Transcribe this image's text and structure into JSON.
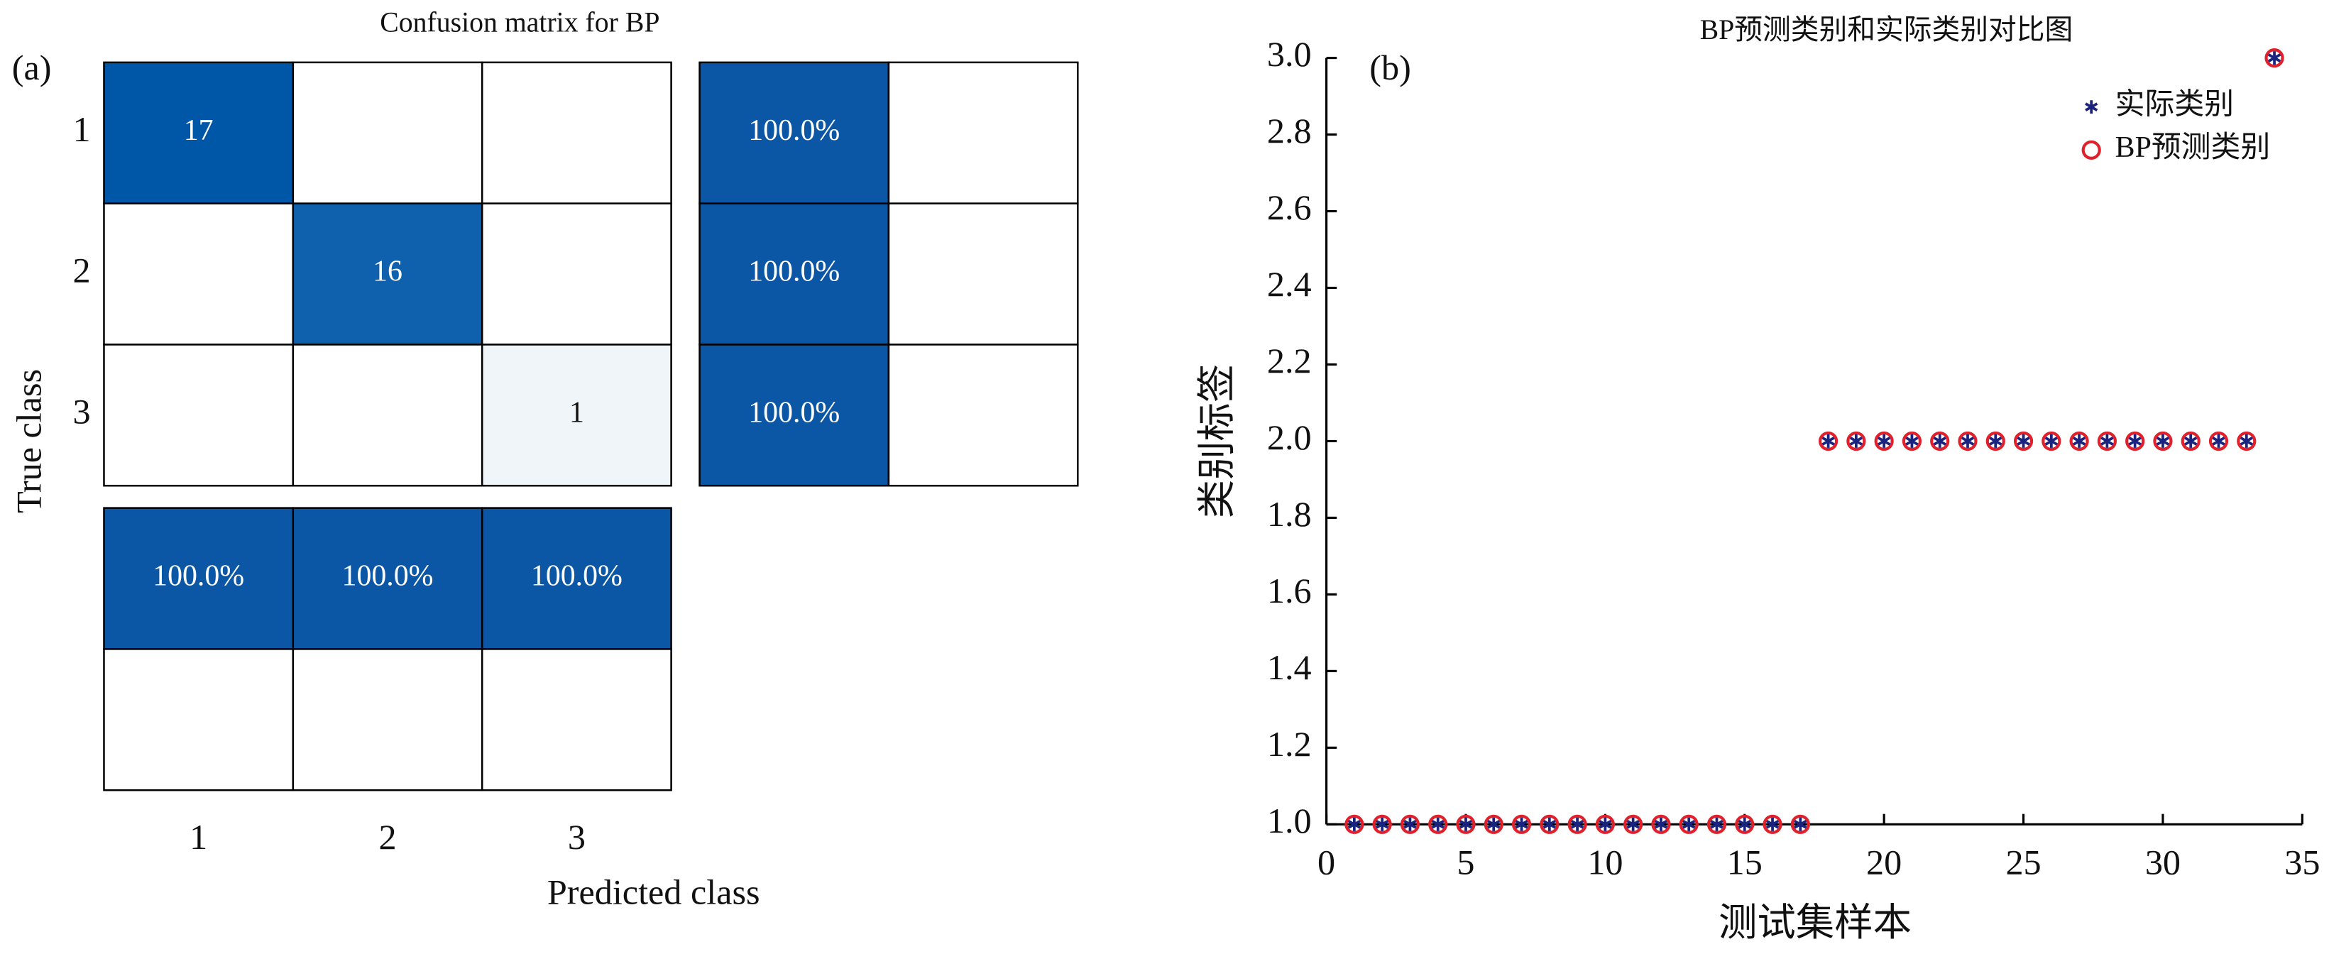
{
  "chart_data": [
    {
      "type": "confusion",
      "panel": "(a)",
      "title": "Confusion matrix for BP",
      "xlabel": "Predicted class",
      "ylabel": "True class",
      "classes": [
        "1",
        "2",
        "3"
      ],
      "matrix": [
        [
          17,
          null,
          null
        ],
        [
          null,
          16,
          null
        ],
        [
          null,
          null,
          1
        ]
      ],
      "row_summary": {
        "values": [
          100,
          100,
          100
        ],
        "value_labels": [
          "100.0%",
          "100.0%",
          "100.0%"
        ]
      },
      "column_summary": {
        "values": [
          100,
          100,
          100
        ],
        "value_labels": [
          "100.0%",
          "100.0%",
          "100.0%"
        ]
      },
      "colormap": [
        "#ffffff",
        "#0057a8"
      ],
      "summary_color": "#0b57a5"
    },
    {
      "type": "scatter",
      "panel": "(b)",
      "title": "BP预测类别和实际类别对比图",
      "xlabel": "测试集样本",
      "ylabel": "类别标签",
      "x": [
        1,
        2,
        3,
        4,
        5,
        6,
        7,
        8,
        9,
        10,
        11,
        12,
        13,
        14,
        15,
        16,
        17,
        18,
        19,
        20,
        21,
        22,
        23,
        24,
        25,
        26,
        27,
        28,
        29,
        30,
        31,
        32,
        33,
        34
      ],
      "series": [
        {
          "name": "实际类别",
          "color": "#1a237e",
          "marker": "star",
          "values": [
            1,
            1,
            1,
            1,
            1,
            1,
            1,
            1,
            1,
            1,
            1,
            1,
            1,
            1,
            1,
            1,
            1,
            2,
            2,
            2,
            2,
            2,
            2,
            2,
            2,
            2,
            2,
            2,
            2,
            2,
            2,
            2,
            2,
            3
          ]
        },
        {
          "name": "BP预测类别",
          "color": "#e0202a",
          "marker": "circle",
          "values": [
            1,
            1,
            1,
            1,
            1,
            1,
            1,
            1,
            1,
            1,
            1,
            1,
            1,
            1,
            1,
            1,
            1,
            2,
            2,
            2,
            2,
            2,
            2,
            2,
            2,
            2,
            2,
            2,
            2,
            2,
            2,
            2,
            2,
            3
          ]
        }
      ],
      "xlim": [
        0,
        35
      ],
      "xticks": [
        0,
        5,
        10,
        15,
        20,
        25,
        30,
        35
      ],
      "ylim": [
        1,
        3
      ],
      "yticks": [
        {
          "value": 1,
          "label": "1.0"
        },
        1.2,
        1.4,
        1.6,
        1.8,
        {
          "value": 2,
          "label": "2.0"
        },
        2.2,
        2.4,
        2.6,
        2.8,
        {
          "value": 3,
          "label": "3.0"
        }
      ]
    }
  ]
}
